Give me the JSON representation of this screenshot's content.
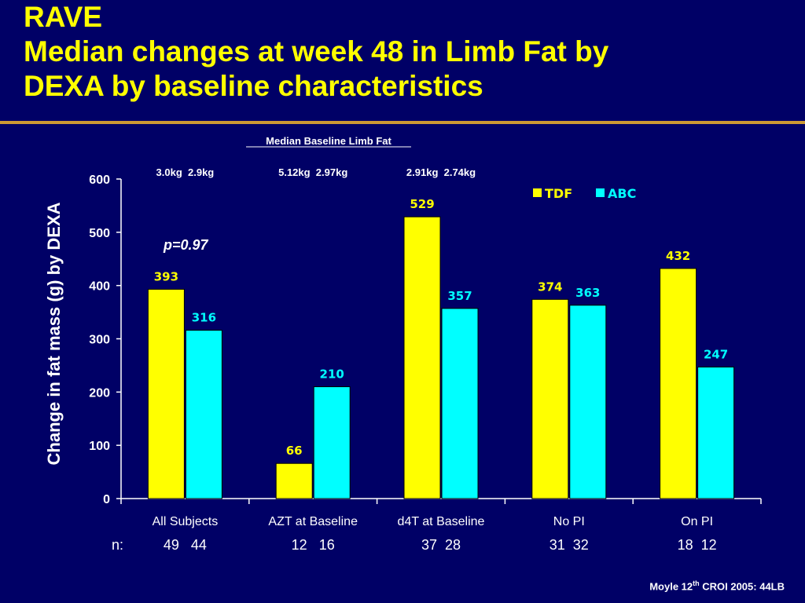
{
  "slide": {
    "title_line1": "RAVE",
    "title_line2": "Median changes at week 48 in Limb Fat by",
    "title_line3": "DEXA by baseline characteristics",
    "credit_pre": "Moyle 12",
    "credit_sup": "th",
    "credit_post": " CROI 2005: 44LB"
  },
  "colors": {
    "background": "#000066",
    "tdf": "#FFFF00",
    "abc": "#00FFFF",
    "rule": "#CC9933",
    "text": "#FFFFFF"
  },
  "chart_data": {
    "type": "bar",
    "title": "",
    "ylabel": "Change in fat mass (g) by DEXA",
    "xlabel": "",
    "ylim": [
      0,
      600
    ],
    "yticks": [
      "0",
      "100",
      "200",
      "300",
      "400",
      "500",
      "600"
    ],
    "categories": [
      "All Subjects",
      "AZT at Baseline",
      "d4T at Baseline",
      "No PI",
      "On PI"
    ],
    "series": [
      {
        "name": "TDF",
        "values": [
          393,
          66,
          529,
          374,
          432
        ],
        "color": "#FFFF00"
      },
      {
        "name": "ABC",
        "values": [
          316,
          210,
          357,
          363,
          247
        ],
        "color": "#00FFFF"
      }
    ],
    "legend_position": "top-right",
    "n_prefix": "n:",
    "n_values": [
      "49   44",
      "12   16",
      "37  28",
      "31  32",
      "18  12"
    ],
    "baseline_header": "Median Baseline Limb Fat",
    "baseline_values": [
      "3.0kg  2.9kg",
      "5.12kg  2.97kg",
      "2.91kg  2.74kg"
    ],
    "annotation": "p=0.97"
  }
}
